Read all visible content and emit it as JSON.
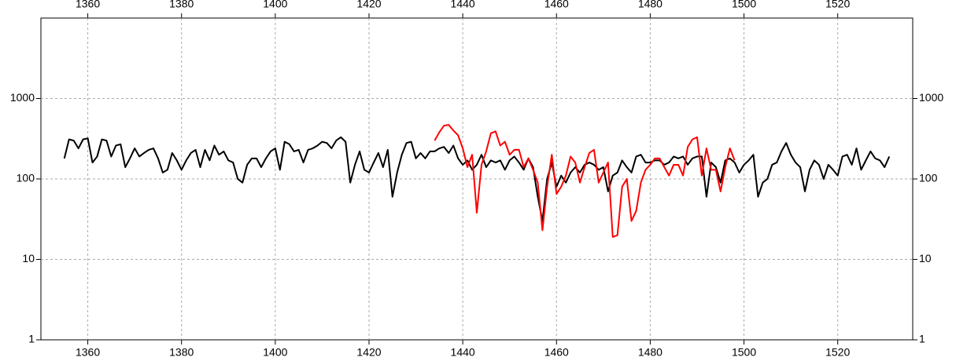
{
  "chart_data": {
    "type": "line",
    "log_y": true,
    "grid": true,
    "xlim": [
      1350,
      1536
    ],
    "xticks": [
      1360,
      1380,
      1400,
      1420,
      1440,
      1460,
      1480,
      1500,
      1520
    ],
    "ylim": [
      1,
      10000
    ],
    "yticks": [
      1,
      10,
      100,
      1000
    ],
    "series": [
      {
        "color": "#000000",
        "x": [
          1355,
          1356,
          1357,
          1358,
          1359,
          1360,
          1361,
          1362,
          1363,
          1364,
          1365,
          1366,
          1367,
          1368,
          1369,
          1370,
          1371,
          1372,
          1373,
          1374,
          1375,
          1376,
          1377,
          1378,
          1379,
          1380,
          1381,
          1382,
          1383,
          1384,
          1385,
          1386,
          1387,
          1388,
          1389,
          1390,
          1391,
          1392,
          1393,
          1394,
          1395,
          1396,
          1397,
          1398,
          1399,
          1400,
          1401,
          1402,
          1403,
          1404,
          1405,
          1406,
          1407,
          1408,
          1409,
          1410,
          1411,
          1412,
          1413,
          1414,
          1415,
          1416,
          1417,
          1418,
          1419,
          1420,
          1421,
          1422,
          1423,
          1424,
          1425,
          1426,
          1427,
          1428,
          1429,
          1430,
          1431,
          1432,
          1433,
          1434,
          1435,
          1436,
          1437,
          1438,
          1439,
          1440,
          1441,
          1442,
          1443,
          1444,
          1445,
          1446,
          1447,
          1448,
          1449,
          1450,
          1451,
          1452,
          1453,
          1454,
          1455,
          1456,
          1457,
          1458,
          1459,
          1460,
          1461,
          1462,
          1463,
          1464,
          1465,
          1466,
          1467,
          1468,
          1469,
          1470,
          1471,
          1472,
          1473,
          1474,
          1475,
          1476,
          1477,
          1478,
          1479,
          1480,
          1481,
          1482,
          1483,
          1484,
          1485,
          1486,
          1487,
          1488,
          1489,
          1490,
          1491,
          1492,
          1493,
          1494,
          1495,
          1496,
          1497,
          1498,
          1499,
          1500,
          1501,
          1502,
          1503,
          1504,
          1505,
          1506,
          1507,
          1508,
          1509,
          1510,
          1511,
          1512,
          1513,
          1514,
          1515,
          1516,
          1517,
          1518,
          1519,
          1520,
          1521,
          1522,
          1523,
          1524,
          1525,
          1526,
          1527,
          1528,
          1529,
          1530,
          1531
        ],
        "values": [
          180,
          310,
          300,
          240,
          310,
          320,
          160,
          190,
          310,
          300,
          190,
          260,
          270,
          140,
          180,
          240,
          190,
          210,
          230,
          240,
          180,
          120,
          130,
          210,
          170,
          130,
          170,
          210,
          230,
          140,
          230,
          170,
          260,
          200,
          220,
          170,
          160,
          100,
          90,
          150,
          180,
          180,
          140,
          180,
          220,
          240,
          130,
          290,
          270,
          220,
          230,
          160,
          230,
          240,
          260,
          290,
          280,
          240,
          300,
          330,
          290,
          90,
          150,
          220,
          130,
          120,
          160,
          210,
          140,
          230,
          60,
          120,
          200,
          280,
          290,
          180,
          210,
          180,
          220,
          220,
          240,
          250,
          210,
          260,
          180,
          150,
          170,
          130,
          150,
          200,
          140,
          170,
          160,
          170,
          130,
          170,
          190,
          160,
          130,
          180,
          140,
          60,
          30,
          100,
          160,
          80,
          110,
          90,
          120,
          140,
          120,
          150,
          160,
          150,
          130,
          140,
          70,
          110,
          120,
          170,
          140,
          120,
          190,
          200,
          160,
          160,
          170,
          170,
          150,
          160,
          190,
          180,
          190,
          150,
          180,
          190,
          190,
          60,
          160,
          140,
          90,
          170,
          180,
          160,
          120,
          150,
          170,
          200,
          60,
          90,
          100,
          150,
          160,
          220,
          280,
          200,
          160,
          140,
          70,
          130,
          170,
          150,
          100,
          150,
          130,
          110,
          190,
          200,
          150,
          240,
          130,
          170,
          220,
          180,
          170,
          140,
          190
        ]
      },
      {
        "color": "#ff0000",
        "x": [
          1434,
          1435,
          1436,
          1437,
          1438,
          1439,
          1440,
          1441,
          1442,
          1443,
          1444,
          1445,
          1446,
          1447,
          1448,
          1449,
          1450,
          1451,
          1452,
          1453,
          1454,
          1455,
          1456,
          1457,
          1458,
          1459,
          1460,
          1461,
          1462,
          1463,
          1464,
          1465,
          1466,
          1467,
          1468,
          1469,
          1470,
          1471,
          1472,
          1473,
          1474,
          1475,
          1476,
          1477,
          1478,
          1479,
          1480,
          1481,
          1482,
          1483,
          1484,
          1485,
          1486,
          1487,
          1488,
          1489,
          1490,
          1491,
          1492,
          1493,
          1494,
          1495,
          1496,
          1497,
          1498
        ],
        "values": [
          300,
          380,
          460,
          470,
          400,
          350,
          240,
          140,
          200,
          38,
          150,
          220,
          370,
          390,
          260,
          290,
          200,
          230,
          230,
          140,
          180,
          130,
          90,
          23,
          80,
          200,
          65,
          80,
          110,
          190,
          160,
          90,
          140,
          210,
          230,
          90,
          120,
          160,
          19,
          20,
          80,
          100,
          30,
          40,
          90,
          130,
          150,
          180,
          180,
          140,
          110,
          150,
          150,
          110,
          250,
          310,
          330,
          110,
          240,
          130,
          130,
          70,
          140,
          240,
          170
        ]
      }
    ]
  }
}
